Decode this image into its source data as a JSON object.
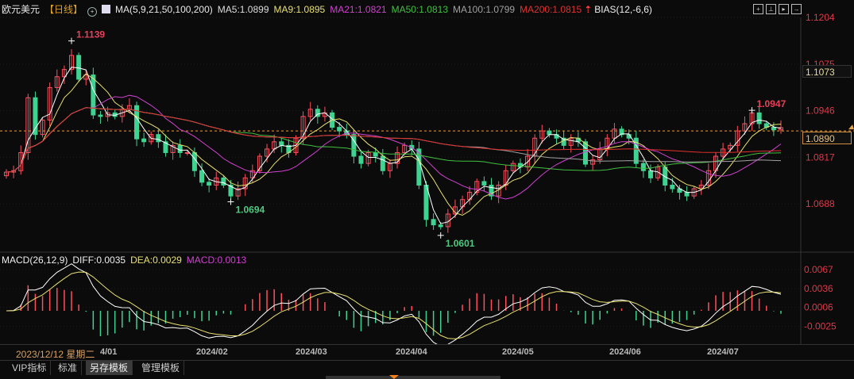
{
  "header": {
    "instrument": "欧元美元",
    "period": "【日线】",
    "ma_label": "MA(5,9,21,50,100,200)",
    "ma5": "MA5:1.0899",
    "ma9": "MA9:1.0895",
    "ma21": "MA21:1.0821",
    "ma50": "MA50:1.0813",
    "ma100": "MA100:1.0799",
    "ma200": "MA200:1.0815",
    "bias": "BIAS(12,-6,6)"
  },
  "macd_header": {
    "label": "MACD(26,12,9)",
    "diff": "DIFF:0.0035",
    "dea": "DEA:0.0029",
    "macd": "MACD:0.0013"
  },
  "colors": {
    "up": "#ff4f5e",
    "down": "#3ed391",
    "ma5": "#ffffff",
    "ma9": "#e8e070",
    "ma21": "#d040d0",
    "ma50": "#40c040",
    "ma100": "#a0a0a0",
    "ma200": "#e03030",
    "axis_text": "#e03848",
    "current_price": "#e8a040"
  },
  "right_axis": {
    "price_ticks": [
      "1.1204",
      "1.1075",
      "1.0946",
      "1.0817",
      "1.0688"
    ],
    "macd_ticks": [
      "0.0067",
      "0.0036",
      "0.0006",
      "-0.0025"
    ],
    "cursor_price": "1.1073",
    "current_price": "1.0890"
  },
  "date_axis": {
    "cursor_date": "2023/12/12 星期二",
    "labels": [
      "4/01",
      "2024/02",
      "2024/03",
      "2024/04",
      "2024/05",
      "2024/06",
      "2024/07"
    ]
  },
  "toolbar": {
    "tabs": [
      {
        "label": "VIP指标",
        "active": false
      },
      {
        "label": "标准",
        "active": false
      },
      {
        "label": "另存模板",
        "active": true
      },
      {
        "label": "管理模板",
        "active": false
      }
    ]
  },
  "chart_data": {
    "type": "candlestick",
    "price_range": [
      1.056,
      1.125
    ],
    "macd_range": [
      -0.0045,
      0.0072
    ],
    "current_price": 1.089,
    "closes": [
      1.0776,
      1.078,
      1.083,
      1.0982,
      1.088,
      1.092,
      1.101,
      1.104,
      1.106,
      1.1099,
      1.1033,
      1.1045,
      1.0934,
      1.093,
      1.094,
      1.093,
      1.095,
      1.096,
      1.0868,
      1.086,
      1.088,
      1.086,
      1.083,
      1.085,
      1.083,
      1.083,
      1.078,
      1.0748,
      1.074,
      1.076,
      1.074,
      1.071,
      1.073,
      1.076,
      1.078,
      1.082,
      1.084,
      1.086,
      1.085,
      1.083,
      1.087,
      1.093,
      1.095,
      1.093,
      1.094,
      1.09,
      1.089,
      1.088,
      1.082,
      1.08,
      1.083,
      1.082,
      1.078,
      1.08,
      1.083,
      1.085,
      1.084,
      1.074,
      1.0645,
      1.063,
      1.0625,
      1.066,
      1.068,
      1.07,
      1.072,
      1.075,
      1.074,
      1.071,
      1.074,
      1.078,
      1.08,
      1.079,
      1.082,
      1.087,
      1.089,
      1.088,
      1.087,
      1.085,
      1.087,
      1.086,
      1.0798,
      1.081,
      1.084,
      1.087,
      1.0895,
      1.088,
      1.087,
      1.08,
      1.078,
      1.076,
      1.079,
      1.074,
      1.073,
      1.072,
      1.071,
      1.073,
      1.074,
      1.078,
      1.082,
      1.084,
      1.085,
      1.089,
      1.091,
      1.094,
      1.091,
      1.09,
      1.0893,
      1.0899
    ],
    "annotations": [
      {
        "text": "1.1139",
        "bar": 9,
        "value": 1.1139,
        "kind": "high"
      },
      {
        "text": "1.0694",
        "bar": 31,
        "value": 1.0694,
        "kind": "low"
      },
      {
        "text": "1.0601",
        "bar": 60,
        "value": 1.0601,
        "kind": "low"
      },
      {
        "text": "1.0947",
        "bar": 103,
        "value": 1.0947,
        "kind": "high"
      }
    ],
    "ma_periods": [
      5,
      9,
      21,
      50,
      100,
      200
    ]
  }
}
